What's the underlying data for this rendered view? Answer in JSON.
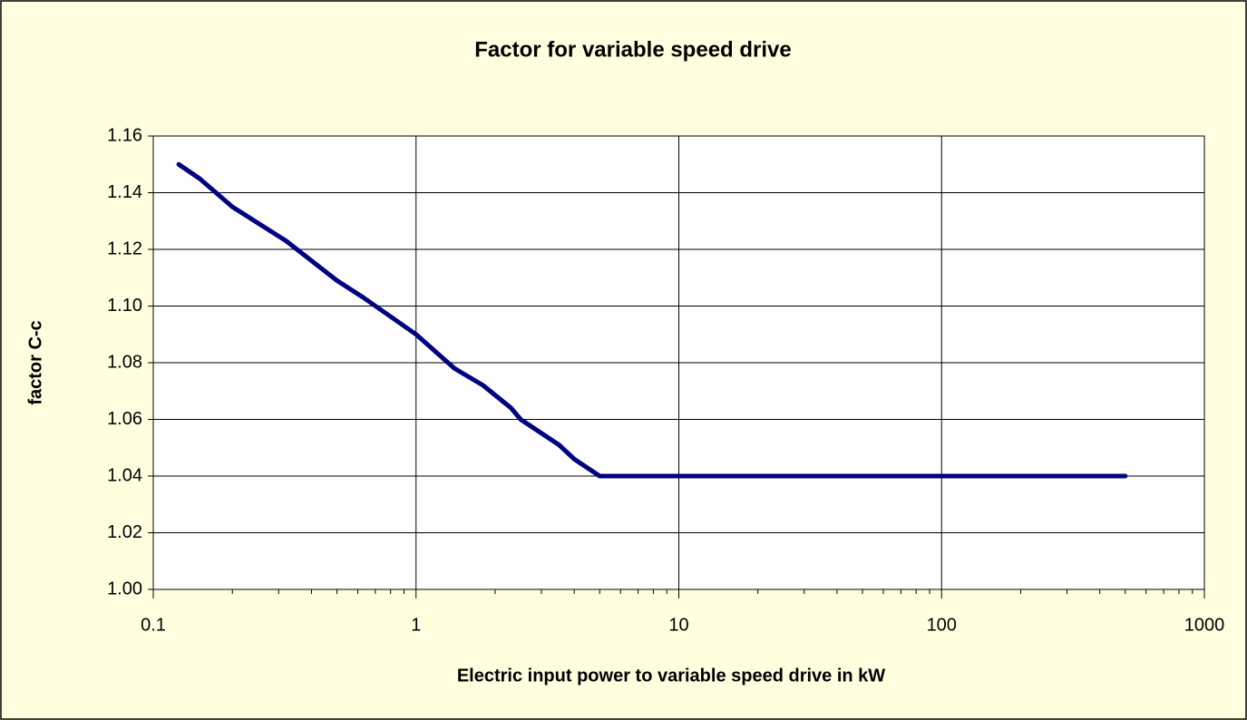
{
  "chart_data": {
    "type": "line",
    "title": "Factor for variable speed drive",
    "xlabel": "Electric input power to variable speed drive in kW",
    "ylabel": "factor C-c",
    "xscale": "log",
    "grid": true,
    "x": [
      0.125,
      0.15,
      0.2,
      0.32,
      0.5,
      0.63,
      1,
      1.4,
      1.8,
      2.3,
      2.5,
      3.5,
      4,
      5,
      500
    ],
    "series": [
      {
        "name": "factor C-c",
        "color": "#000080",
        "values": [
          1.15,
          1.145,
          1.135,
          1.123,
          1.109,
          1.103,
          1.09,
          1.078,
          1.072,
          1.064,
          1.06,
          1.051,
          1.046,
          1.04,
          1.04
        ]
      }
    ],
    "xlim": [
      0.1,
      1000
    ],
    "xticks": [
      0.1,
      1,
      10,
      100,
      1000
    ],
    "ylim": [
      1.0,
      1.16
    ],
    "yticks": [
      {
        "value": 1.0,
        "label": "1.00"
      },
      1.02,
      1.04,
      1.06,
      1.08,
      {
        "value": 1.1,
        "label": "1.10"
      },
      1.12,
      1.14,
      1.16
    ]
  }
}
